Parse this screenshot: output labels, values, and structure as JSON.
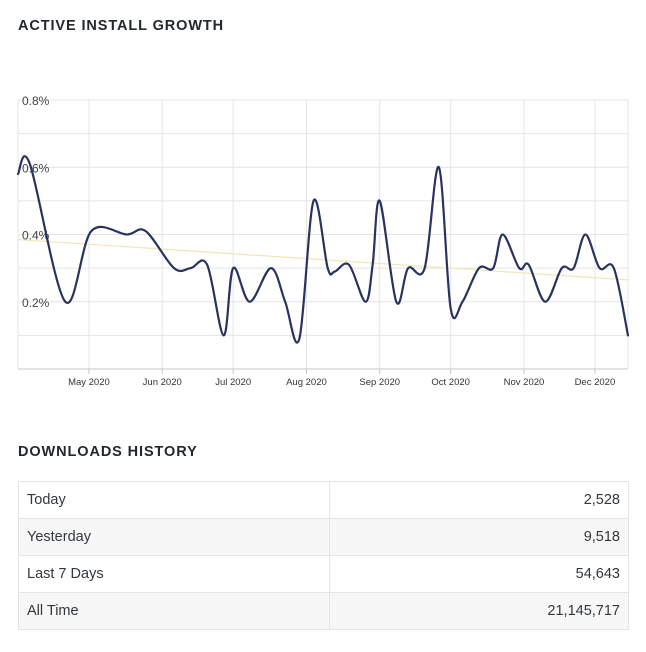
{
  "growth_section": {
    "title": "ACTIVE INSTALL GROWTH"
  },
  "chart_data": {
    "type": "line",
    "title": "ACTIVE INSTALL GROWTH",
    "xlabel": "",
    "ylabel": "",
    "ylim": [
      0,
      0.8
    ],
    "y_ticks": [
      {
        "value": 0.8,
        "label": "0.8%"
      },
      {
        "value": 0.6,
        "label": "0.6%"
      },
      {
        "value": 0.4,
        "label": "0.4%"
      },
      {
        "value": 0.2,
        "label": "0.2%"
      }
    ],
    "x_ticks": [
      {
        "day": 30,
        "label": "May 2020"
      },
      {
        "day": 61,
        "label": "Jun 2020"
      },
      {
        "day": 91,
        "label": "Jul 2020"
      },
      {
        "day": 122,
        "label": "Aug 2020"
      },
      {
        "day": 153,
        "label": "Sep 2020"
      },
      {
        "day": 183,
        "label": "Oct 2020"
      },
      {
        "day": 214,
        "label": "Nov 2020"
      },
      {
        "day": 244,
        "label": "Dec 2020"
      }
    ],
    "xlim": [
      0,
      258
    ],
    "grid": true,
    "series": [
      {
        "name": "Active install growth",
        "color": "#2b325f",
        "x": [
          0,
          5,
          20,
          31,
          46,
          54,
          66,
          73,
          80,
          87,
          91,
          98,
          107,
          113,
          119,
          125,
          131,
          134,
          140,
          147,
          150,
          153,
          160,
          165,
          172,
          178,
          183,
          188,
          195,
          201,
          205,
          212,
          216,
          223,
          230,
          235,
          240,
          246,
          252,
          258
        ],
        "values": [
          0.58,
          0.61,
          0.2,
          0.41,
          0.4,
          0.41,
          0.3,
          0.3,
          0.31,
          0.1,
          0.3,
          0.2,
          0.3,
          0.2,
          0.09,
          0.5,
          0.3,
          0.29,
          0.31,
          0.2,
          0.31,
          0.5,
          0.2,
          0.3,
          0.3,
          0.6,
          0.18,
          0.2,
          0.3,
          0.3,
          0.4,
          0.3,
          0.31,
          0.2,
          0.3,
          0.3,
          0.4,
          0.3,
          0.3,
          0.1
        ]
      },
      {
        "name": "Trend",
        "color": "#f2e6b5",
        "x": [
          0,
          258
        ],
        "values": [
          0.385,
          0.265
        ]
      }
    ]
  },
  "downloads_section": {
    "title": "DOWNLOADS HISTORY",
    "rows": [
      {
        "label": "Today",
        "value": "2,528"
      },
      {
        "label": "Yesterday",
        "value": "9,518"
      },
      {
        "label": "Last 7 Days",
        "value": "54,643"
      },
      {
        "label": "All Time",
        "value": "21,145,717"
      }
    ]
  }
}
